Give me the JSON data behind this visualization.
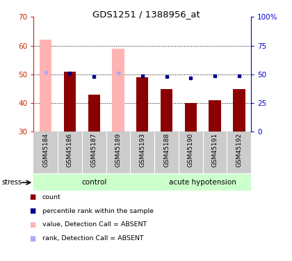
{
  "title": "GDS1251 / 1388956_at",
  "samples": [
    "GSM45184",
    "GSM45186",
    "GSM45187",
    "GSM45189",
    "GSM45193",
    "GSM45188",
    "GSM45190",
    "GSM45191",
    "GSM45192"
  ],
  "red_bar_values": [
    62.0,
    51.0,
    43.0,
    59.0,
    49.0,
    45.0,
    40.0,
    41.0,
    45.0
  ],
  "blue_dot_values": [
    52.0,
    51.0,
    48.0,
    51.0,
    49.0,
    48.0,
    47.0,
    49.0,
    49.0
  ],
  "absent_flags": [
    true,
    false,
    false,
    true,
    false,
    false,
    false,
    false,
    false
  ],
  "left_ylim": [
    30,
    70
  ],
  "right_ylim": [
    0,
    100
  ],
  "left_yticks": [
    30,
    40,
    50,
    60,
    70
  ],
  "right_yticks": [
    0,
    25,
    50,
    75,
    100
  ],
  "right_yticklabels": [
    "0",
    "25",
    "50",
    "75",
    "100%"
  ],
  "n_control": 5,
  "n_hypo": 4,
  "group_label_control": "control",
  "group_label_hypotension": "acute hypotension",
  "stress_label": "stress",
  "bar_color_normal": "#8b0000",
  "bar_color_absent": "#ffb3b3",
  "dot_color_normal": "#00008b",
  "dot_color_absent": "#aaaaff",
  "bg_color_xlabels": "#cccccc",
  "bg_color_group_light": "#ccffcc",
  "bg_color_group_border": "#33cc33",
  "legend_items": [
    {
      "color": "#8b0000",
      "label": "count"
    },
    {
      "color": "#00008b",
      "label": "percentile rank within the sample"
    },
    {
      "color": "#ffb3b3",
      "label": "value, Detection Call = ABSENT"
    },
    {
      "color": "#aaaaff",
      "label": "rank, Detection Call = ABSENT"
    }
  ]
}
